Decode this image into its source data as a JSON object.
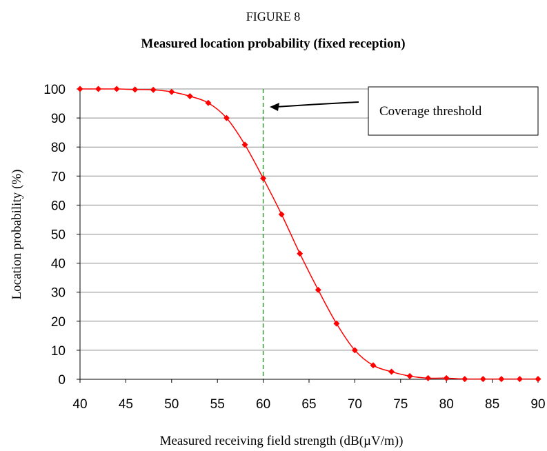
{
  "figure": {
    "number": "FIGURE 8",
    "caption": "Measured location probability (fixed reception)"
  },
  "chart_data": {
    "type": "line",
    "xlabel": "Measured receiving field strength (dB(µV/m))",
    "ylabel": "Location probability (%)",
    "xlim": [
      40,
      90
    ],
    "ylim": [
      0,
      100
    ],
    "x_ticks": [
      "40",
      "45",
      "50",
      "55",
      "60",
      "65",
      "70",
      "75",
      "80",
      "85",
      "90"
    ],
    "y_ticks": [
      "0",
      "10",
      "20",
      "30",
      "40",
      "50",
      "60",
      "70",
      "80",
      "90",
      "100"
    ],
    "grid": "horizontal",
    "series": [
      {
        "color": "#ff0000",
        "marker": "diamond",
        "smooth": true,
        "x": [
          40,
          42,
          44,
          46,
          48,
          50,
          52,
          54,
          56,
          58,
          60,
          62,
          64,
          66,
          68,
          70,
          72,
          74,
          76,
          78,
          80,
          82,
          84,
          86,
          88,
          90
        ],
        "values": [
          100,
          100,
          100,
          99.8,
          99.7,
          99,
          97.5,
          95.2,
          90,
          80.8,
          69.2,
          56.8,
          43.3,
          30.8,
          19.2,
          10,
          4.8,
          2.6,
          1.1,
          0.4,
          0.4,
          0.1,
          0.1,
          0.1,
          0.1,
          0.1
        ]
      }
    ],
    "threshold": {
      "x": 60,
      "color": "#339933",
      "style": "dashed"
    },
    "annotation": {
      "text": "Coverage threshold",
      "points_to_x": 60
    }
  }
}
